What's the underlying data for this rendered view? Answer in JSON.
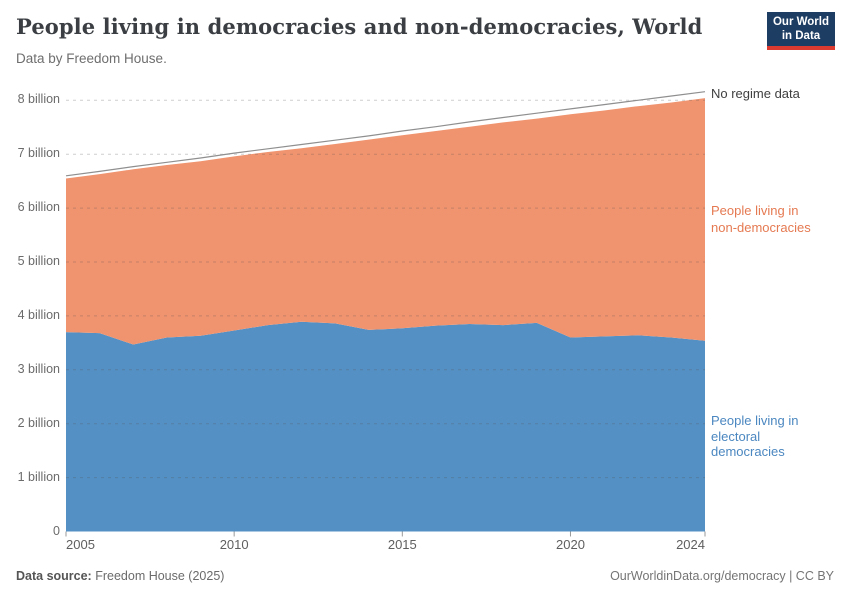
{
  "header": {
    "title": "People living in democracies and non-democracies, World",
    "subtitle": "Data by Freedom House.",
    "logo_line1": "Our World",
    "logo_line2": "in Data",
    "logo_bg": "#1d3d63",
    "logo_accent": "#dc3a2f"
  },
  "annotations": {
    "no_regime": "No regime data",
    "non_democracies": "People living in\nnon-democracies",
    "electoral": "People living in\nelectoral\ndemocracies"
  },
  "footer": {
    "source_label": "Data source:",
    "source_value": " Freedom House (2025)",
    "right": "OurWorldinData.org/democracy | CC BY"
  },
  "chart_data": {
    "type": "area",
    "stacked": true,
    "title": "People living in democracies and non-democracies, World",
    "unit": "billion people",
    "x": [
      2005,
      2006,
      2007,
      2008,
      2009,
      2010,
      2011,
      2012,
      2013,
      2014,
      2015,
      2016,
      2017,
      2018,
      2019,
      2020,
      2021,
      2022,
      2023,
      2024
    ],
    "series": [
      {
        "name": "People living in electoral democracies",
        "color": "#5590c4",
        "values": [
          3.7,
          3.68,
          3.47,
          3.6,
          3.63,
          3.73,
          3.83,
          3.89,
          3.86,
          3.74,
          3.77,
          3.82,
          3.85,
          3.83,
          3.87,
          3.6,
          3.62,
          3.64,
          3.6,
          3.54
        ]
      },
      {
        "name": "People living in non-democracies",
        "color": "#f0946f",
        "values": [
          2.85,
          2.95,
          3.25,
          3.2,
          3.24,
          3.23,
          3.21,
          3.22,
          3.33,
          3.53,
          3.58,
          3.61,
          3.66,
          3.76,
          3.79,
          4.14,
          4.19,
          4.25,
          4.36,
          4.5
        ]
      },
      {
        "name": "No regime data",
        "color": "#ffffff",
        "values": [
          0.05,
          0.05,
          0.05,
          0.05,
          0.06,
          0.06,
          0.06,
          0.07,
          0.07,
          0.07,
          0.08,
          0.08,
          0.09,
          0.09,
          0.1,
          0.1,
          0.11,
          0.11,
          0.12,
          0.12
        ]
      }
    ],
    "total_line_color": "#8f8f8f",
    "grid": "dashed horizontal gridlines at each billion",
    "legend_position": "right-inline",
    "ylim": [
      0,
      8.5
    ],
    "ytick_values": [
      0,
      1,
      2,
      3,
      4,
      5,
      6,
      7,
      8
    ],
    "ytick_labels": [
      "0",
      "1 billion",
      "2 billion",
      "3 billion",
      "4 billion",
      "5 billion",
      "6 billion",
      "7 billion",
      "8 billion"
    ],
    "xtick_values": [
      2005,
      2010,
      2015,
      2020,
      2024
    ],
    "xtick_labels": [
      "2005",
      "2010",
      "2015",
      "2020",
      "2024"
    ]
  }
}
